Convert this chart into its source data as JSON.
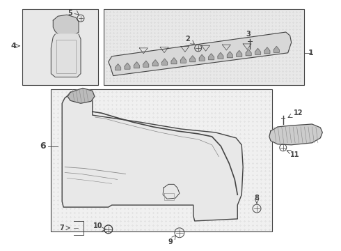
{
  "bg_color": "#ffffff",
  "fig_width": 4.9,
  "fig_height": 3.6,
  "dpi": 100,
  "line_color": "#444444",
  "light_gray": "#e8e8e8",
  "dot_gray": "#d0d0d0"
}
